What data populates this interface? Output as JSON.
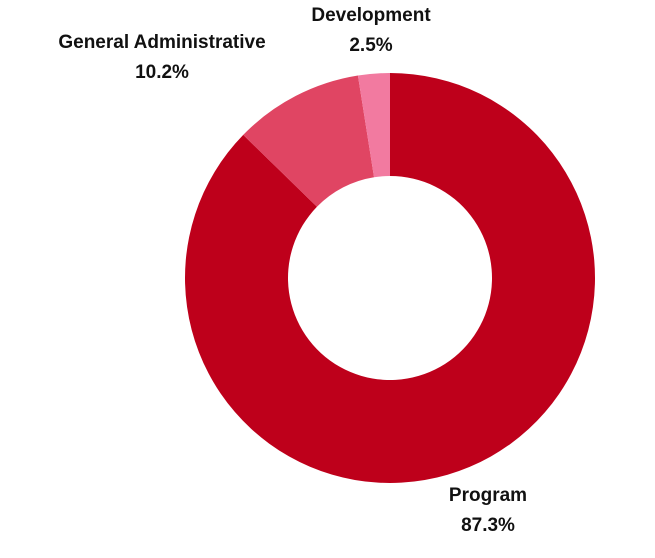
{
  "chart_data": {
    "type": "pie",
    "donut": true,
    "title": "",
    "slices": [
      {
        "label": "Program",
        "value": 87.3,
        "display": "87.3%",
        "color": "#be001b"
      },
      {
        "label": "General Administrative",
        "value": 10.2,
        "display": "10.2%",
        "color": "#e04563"
      },
      {
        "label": "Development",
        "value": 2.5,
        "display": "2.5%",
        "color": "#f27aa0"
      }
    ],
    "start_angle_deg": 0,
    "direction": "clockwise"
  }
}
